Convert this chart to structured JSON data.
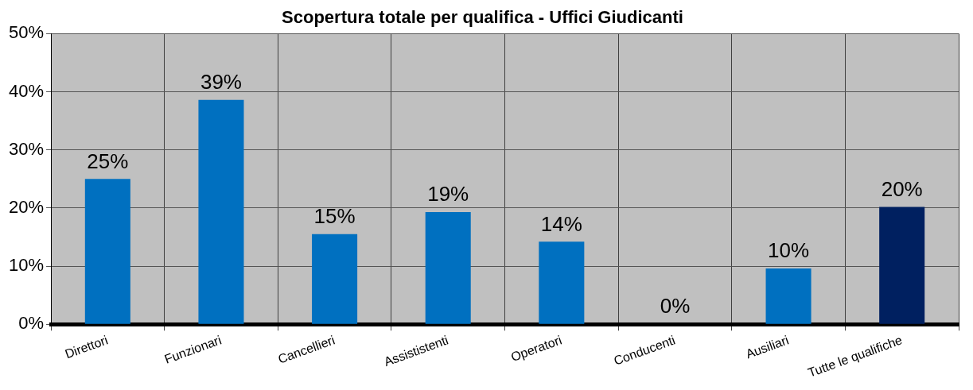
{
  "chart_data": {
    "type": "bar",
    "title": "Scopertura totale per qualifica - Uffici Giudicanti",
    "categories": [
      "Direttori",
      "Funzionari",
      "Cancellieri",
      "Assististenti",
      "Operatori",
      "Conducenti",
      "Ausiliari",
      "Tutte le qualifiche"
    ],
    "values": [
      25,
      38.6,
      15.5,
      19.3,
      14.2,
      0,
      9.6,
      20.2
    ],
    "colors": [
      "#0070c0",
      "#0070c0",
      "#0070c0",
      "#0070c0",
      "#0070c0",
      "#0070c0",
      "#0070c0",
      "#002060"
    ],
    "value_labels": [
      "25%",
      "39%",
      "15%",
      "19%",
      "14%",
      "0%",
      "10%",
      "20%"
    ],
    "ylim": [
      0,
      50
    ],
    "yticks": [
      {
        "value": 0,
        "label": "0%"
      },
      {
        "value": 10,
        "label": "10%"
      },
      {
        "value": 20,
        "label": "20%"
      },
      {
        "value": 30,
        "label": "30%"
      },
      {
        "value": 40,
        "label": "40%"
      },
      {
        "value": 50,
        "label": "50%"
      }
    ],
    "grid": true,
    "legend": false
  }
}
